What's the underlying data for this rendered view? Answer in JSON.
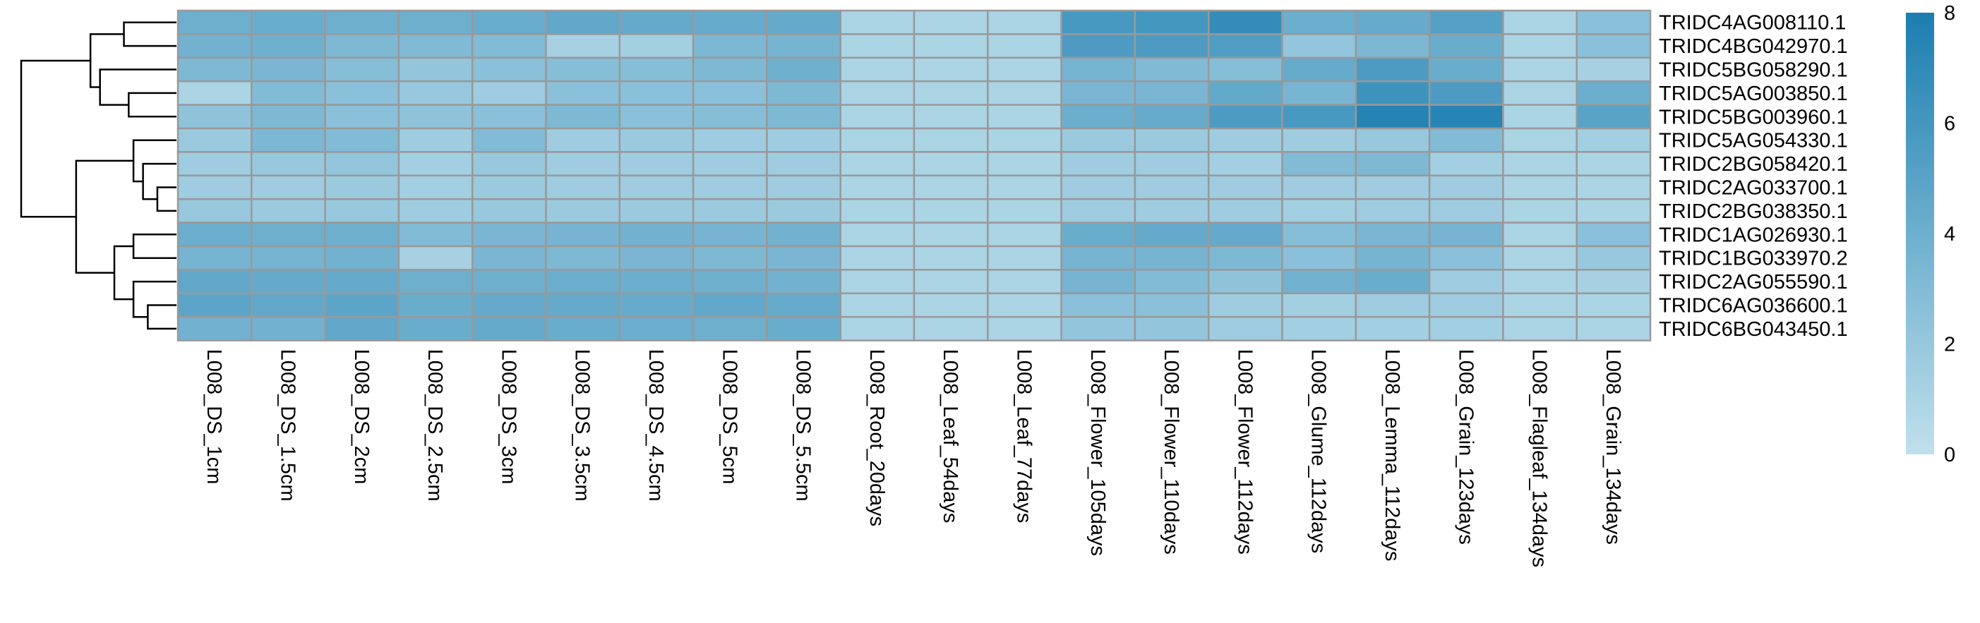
{
  "chart_data": {
    "type": "heatmap",
    "title": "",
    "xlabel": "",
    "ylabel": "",
    "rows": [
      "TRIDC4AG008110.1",
      "TRIDC4BG042970.1",
      "TRIDC5BG058290.1",
      "TRIDC5AG003850.1",
      "TRIDC5BG003960.1",
      "TRIDC5AG054330.1",
      "TRIDC2BG058420.1",
      "TRIDC2AG033700.1",
      "TRIDC2BG038350.1",
      "TRIDC1AG026930.1",
      "TRIDC1BG033970.2",
      "TRIDC2AG055590.1",
      "TRIDC6AG036600.1",
      "TRIDC6BG043450.1"
    ],
    "columns": [
      "L008_DS_1cm",
      "L008_DS_1.5cm",
      "L008_DS_2cm",
      "L008_DS_2.5cm",
      "L008_DS_3cm",
      "L008_DS_3.5cm",
      "L008_DS_4.5cm",
      "L008_DS_5cm",
      "L008_DS_5.5cm",
      "L008_Root_20days",
      "L008_Leaf_54days",
      "L008_Leaf_77days",
      "L008_Flower_105days",
      "L008_Flower_110days",
      "L008_Flower_112days",
      "L008_Glume_112days",
      "L008_Lemma_112days",
      "L008_Grain_123days",
      "L008_Flagleaf_134days",
      "L008_Grain_134days"
    ],
    "values": [
      [
        4.0,
        4.2,
        4.0,
        4.0,
        4.2,
        4.6,
        4.4,
        4.3,
        4.4,
        1.0,
        1.0,
        1.0,
        5.8,
        6.0,
        6.8,
        4.1,
        4.3,
        5.2,
        1.0,
        2.6
      ],
      [
        3.8,
        3.9,
        3.2,
        3.1,
        3.0,
        1.2,
        1.4,
        3.3,
        3.6,
        1.0,
        1.0,
        1.0,
        5.6,
        5.6,
        5.4,
        2.2,
        3.3,
        4.2,
        1.0,
        2.6
      ],
      [
        3.2,
        3.4,
        2.8,
        2.2,
        2.6,
        2.8,
        2.8,
        3.2,
        3.9,
        1.0,
        1.0,
        1.0,
        3.6,
        3.1,
        2.8,
        4.3,
        5.6,
        4.2,
        1.0,
        1.2
      ],
      [
        1.0,
        3.0,
        2.6,
        2.0,
        1.6,
        2.6,
        2.6,
        2.6,
        3.2,
        1.0,
        1.0,
        1.0,
        3.4,
        3.4,
        4.5,
        3.5,
        6.3,
        5.6,
        1.0,
        4.1
      ],
      [
        2.4,
        3.2,
        2.6,
        2.4,
        2.6,
        3.2,
        2.6,
        2.8,
        3.2,
        1.0,
        1.0,
        1.0,
        4.1,
        4.3,
        5.6,
        5.8,
        7.5,
        7.4,
        1.0,
        5.0
      ],
      [
        1.8,
        3.3,
        3.0,
        1.6,
        3.0,
        1.6,
        1.8,
        1.6,
        1.6,
        1.0,
        1.0,
        1.0,
        1.8,
        1.8,
        1.6,
        1.6,
        2.0,
        3.0,
        1.0,
        1.4
      ],
      [
        1.6,
        2.0,
        2.2,
        1.4,
        2.0,
        1.6,
        1.6,
        1.6,
        1.6,
        1.0,
        1.0,
        1.0,
        1.6,
        1.6,
        1.4,
        3.0,
        3.2,
        1.4,
        1.0,
        1.0
      ],
      [
        1.6,
        1.6,
        1.8,
        1.4,
        1.8,
        1.6,
        1.6,
        1.6,
        1.6,
        1.0,
        1.0,
        1.0,
        1.6,
        1.6,
        1.6,
        1.6,
        1.6,
        1.6,
        1.0,
        1.0
      ],
      [
        2.0,
        1.8,
        2.0,
        1.6,
        2.0,
        1.8,
        1.8,
        1.8,
        1.8,
        1.0,
        1.0,
        1.0,
        1.6,
        1.6,
        1.6,
        1.4,
        1.6,
        1.6,
        1.0,
        1.0
      ],
      [
        4.1,
        4.0,
        4.0,
        3.0,
        3.4,
        3.6,
        3.8,
        3.6,
        3.8,
        1.0,
        1.0,
        1.0,
        4.2,
        4.4,
        4.4,
        2.8,
        3.4,
        3.6,
        1.0,
        2.6
      ],
      [
        3.6,
        3.6,
        3.8,
        1.2,
        3.4,
        3.2,
        3.4,
        3.2,
        3.4,
        1.0,
        1.0,
        1.0,
        3.6,
        3.6,
        3.2,
        2.6,
        3.6,
        2.6,
        1.0,
        2.0
      ],
      [
        4.6,
        4.4,
        4.4,
        4.0,
        4.0,
        4.1,
        4.1,
        3.9,
        3.8,
        1.0,
        1.0,
        1.0,
        3.6,
        3.0,
        2.4,
        3.8,
        4.2,
        1.6,
        1.0,
        1.2
      ],
      [
        4.8,
        4.6,
        4.8,
        4.2,
        4.4,
        4.4,
        4.3,
        4.6,
        4.3,
        1.0,
        1.0,
        1.0,
        2.6,
        2.6,
        1.6,
        1.4,
        1.6,
        1.6,
        1.0,
        1.0
      ],
      [
        3.8,
        3.8,
        4.6,
        4.2,
        4.4,
        4.2,
        4.1,
        4.0,
        4.2,
        1.0,
        1.0,
        1.0,
        2.2,
        2.2,
        1.6,
        1.4,
        1.4,
        1.4,
        1.0,
        1.0
      ]
    ],
    "color_scale": {
      "min": 0,
      "max": 8,
      "low_color": "#c0e0ec",
      "high_color": "#1b7eb0",
      "ticks": [
        "0",
        "2",
        "4",
        "6",
        "8"
      ]
    },
    "grid_color": "#999999",
    "dendrogram": {
      "side": "left",
      "leaf_order": [
        0,
        1,
        2,
        3,
        4,
        5,
        6,
        7,
        8,
        9,
        10,
        11,
        12,
        13
      ],
      "merges": [
        {
          "children": [
            3,
            4
          ],
          "height": 2.0
        },
        {
          "children": [
            2,
            "m0"
          ],
          "height": 3.2
        },
        {
          "children": [
            0,
            1
          ],
          "height": 2.2
        },
        {
          "children": [
            "m2",
            "m1"
          ],
          "height": 3.6
        },
        {
          "children": [
            7,
            8
          ],
          "height": 0.8
        },
        {
          "children": [
            6,
            "m4"
          ],
          "height": 1.4
        },
        {
          "children": [
            5,
            "m5"
          ],
          "height": 1.8
        },
        {
          "children": [
            9,
            10
          ],
          "height": 1.8
        },
        {
          "children": [
            12,
            13
          ],
          "height": 1.2
        },
        {
          "children": [
            11,
            "m8"
          ],
          "height": 1.8
        },
        {
          "children": [
            "m7",
            "m9"
          ],
          "height": 2.6
        },
        {
          "children": [
            "m6",
            "m10"
          ],
          "height": 4.2
        },
        {
          "children": [
            "m3",
            "m11"
          ],
          "height": 6.5
        }
      ]
    },
    "legend": {
      "position": "right",
      "type": "colorbar"
    }
  }
}
